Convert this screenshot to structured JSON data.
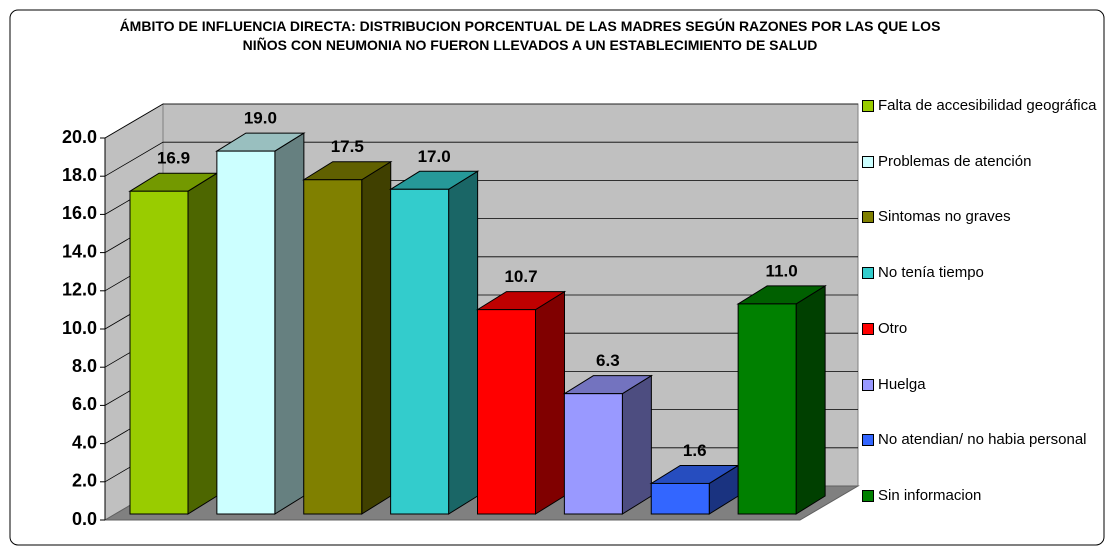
{
  "chart_data": {
    "type": "bar3d",
    "title": "ÁMBITO DE INFLUENCIA DIRECTA: DISTRIBUCION PORCENTUAL DE LAS MADRES SEGÚN RAZONES POR LAS QUE LOS NIÑOS CON NEUMONIA NO FUERON LLEVADOS A UN ESTABLECIMIENTO DE SALUD",
    "categories": [
      "Falta de accesibilidad geográfica",
      "Problemas de atención",
      "Sintomas no graves",
      "No tenía tiempo",
      "Otro",
      "Huelga",
      "No atendian/ no habia personal",
      "Sin informacion"
    ],
    "values": [
      16.9,
      19.0,
      17.5,
      17.0,
      10.7,
      6.3,
      1.6,
      11.0
    ],
    "value_labels": [
      "16.9",
      "19.0",
      "17.5",
      "17.0",
      "10.7",
      "6.3",
      "1.6",
      "11.0"
    ],
    "colors": [
      "#99cc00",
      "#ccffff",
      "#808000",
      "#33cccc",
      "#ff0000",
      "#9999ff",
      "#3366ff",
      "#008000"
    ],
    "ylim": [
      0,
      20
    ],
    "yticks": [
      {
        "value": 0,
        "label": "0.0"
      },
      {
        "value": 2,
        "label": "2.0"
      },
      {
        "value": 4,
        "label": "4.0"
      },
      {
        "value": 6,
        "label": "6.0"
      },
      {
        "value": 8,
        "label": "8.0"
      },
      {
        "value": 10,
        "label": "10.0"
      },
      {
        "value": 12,
        "label": "12.0"
      },
      {
        "value": 14,
        "label": "14.0"
      },
      {
        "value": 16,
        "label": "16.0"
      },
      {
        "value": 18,
        "label": "18.0"
      },
      {
        "value": 20,
        "label": "20.0"
      }
    ],
    "grid": true,
    "legend": "right"
  }
}
